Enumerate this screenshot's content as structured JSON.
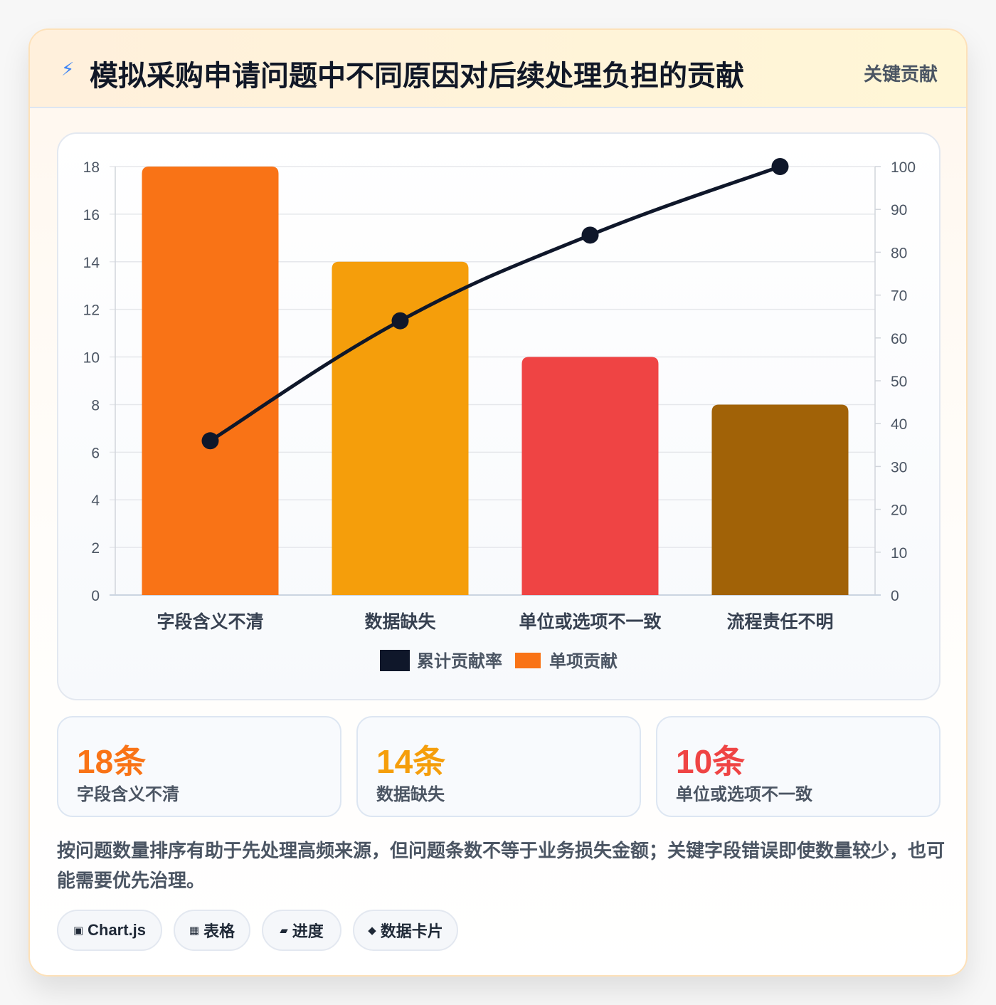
{
  "header": {
    "icon": "lightning-icon",
    "title": "模拟采购申请问题中不同原因对后续处理负担的贡献",
    "tag": "关键贡献"
  },
  "chart_data": {
    "type": "bar",
    "title": "",
    "categories": [
      "字段含义不清",
      "数据缺失",
      "单位或选项不一致",
      "流程责任不明"
    ],
    "series": [
      {
        "name": "单项贡献",
        "type": "bar",
        "axis": "left",
        "values": [
          18,
          14,
          10,
          8
        ],
        "colors": [
          "#f97316",
          "#f59e0b",
          "#ef4444",
          "#a16207"
        ]
      },
      {
        "name": "累计贡献率",
        "type": "line",
        "axis": "right",
        "values": [
          36,
          64,
          84,
          100
        ],
        "color": "#0f172a"
      }
    ],
    "y_left": {
      "min": 0,
      "max": 18,
      "step": 2
    },
    "y_right": {
      "min": 0,
      "max": 100,
      "step": 10
    },
    "grid": true,
    "legend": {
      "position": "bottom",
      "order": [
        "累计贡献率",
        "单项贡献"
      ]
    }
  },
  "stats": [
    {
      "value": "18条",
      "label": "字段含义不清",
      "color": "#f97316"
    },
    {
      "value": "14条",
      "label": "数据缺失",
      "color": "#f59e0b"
    },
    {
      "value": "10条",
      "label": "单位或选项不一致",
      "color": "#ef4444"
    }
  ],
  "note": "按问题数量排序有助于先处理高频来源，但问题条数不等于业务损失金额；关键字段错误即使数量较少，也可能需要优先治理。",
  "chips": [
    {
      "icon": "▣",
      "label": "Chart.js"
    },
    {
      "icon": "▦",
      "label": "表格"
    },
    {
      "icon": "▰",
      "label": "进度"
    },
    {
      "icon": "◆",
      "label": "数据卡片"
    }
  ]
}
